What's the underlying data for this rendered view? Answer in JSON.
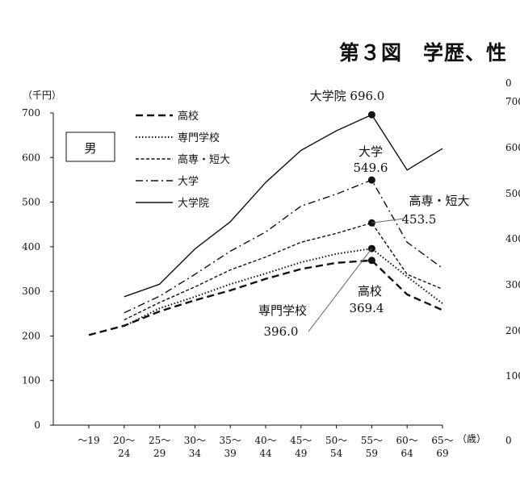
{
  "page": {
    "title": "第３図　学歴、性"
  },
  "chart_data": {
    "type": "line",
    "ylabel": "（千円）",
    "xlabel": "（歳）",
    "ylim": [
      0,
      700
    ],
    "yticks": [
      0,
      100,
      200,
      300,
      400,
      500,
      600,
      700
    ],
    "categories": [
      [
        "～19",
        ""
      ],
      [
        "20～",
        "24"
      ],
      [
        "25～",
        "29"
      ],
      [
        "30～",
        "34"
      ],
      [
        "35～",
        "39"
      ],
      [
        "40～",
        "44"
      ],
      [
        "45～",
        "49"
      ],
      [
        "50～",
        "54"
      ],
      [
        "55～",
        "59"
      ],
      [
        "60～",
        "64"
      ],
      [
        "65～",
        "69"
      ]
    ],
    "gender_label": "男",
    "series": [
      {
        "name": "高校",
        "style": "dashed",
        "values": [
          202,
          223,
          255,
          280,
          302,
          328,
          350,
          364,
          369.4,
          293,
          258
        ]
      },
      {
        "name": "専門学校",
        "style": "dotted",
        "values": [
          null,
          222,
          262,
          288,
          316,
          340,
          365,
          384,
          396.0,
          333,
          273
        ]
      },
      {
        "name": "高専・短大",
        "style": "short-dashed",
        "values": [
          null,
          236,
          275,
          310,
          348,
          377,
          410,
          430,
          453.5,
          338,
          305
        ]
      },
      {
        "name": "大学",
        "style": "dash-dot",
        "values": [
          null,
          252,
          289,
          338,
          390,
          433,
          491,
          518,
          549.6,
          410,
          352
        ]
      },
      {
        "name": "大学院",
        "style": "solid",
        "values": [
          null,
          288,
          316,
          395,
          456,
          544,
          616,
          660,
          696.0,
          572,
          620
        ]
      }
    ],
    "annotations": [
      {
        "label": "大学院 696.0"
      },
      {
        "label": "大学",
        "value": "549.6"
      },
      {
        "label": "高専・短大",
        "value": "453.5"
      },
      {
        "label": "高校",
        "value": "369.4"
      },
      {
        "label": "専門学校",
        "value": "396.0"
      }
    ],
    "right_panel_ticks": [
      "0",
      "700",
      "600",
      "500",
      "400",
      "300",
      "200",
      "100",
      "0"
    ]
  }
}
